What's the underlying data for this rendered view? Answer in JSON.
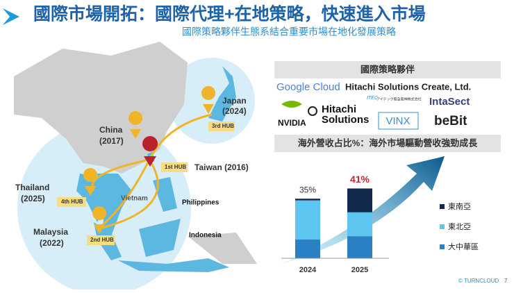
{
  "header": {
    "title": "國際市場開拓：國際代理+在地策略，快速進入市場",
    "subtitle": "國際策略夥伴生態系結合重要市場在地化發展策略"
  },
  "map": {
    "labels": {
      "japan": "Japan",
      "japan_year": "(2024)",
      "china": "China",
      "china_year": "(2017)",
      "taiwan": "Taiwan (2016)",
      "thailand": "Thailand",
      "thailand_year": "(2025)",
      "malaysia": "Malaysia",
      "malaysia_year": "(2022)",
      "vietnam": "Vietnam",
      "philippines": "Philippines",
      "indonesia": "Indonesia"
    },
    "hubs": [
      "1st HUB",
      "2nd HUB",
      "3rd HUB",
      "4th HUB"
    ]
  },
  "partners": {
    "heading": "國際策略夥伴",
    "logos": [
      "Google Cloud",
      "Hitachi Solutions Create, Ltd.",
      "NVIDIA",
      "Hitachi",
      "Solutions",
      "ITEC",
      "アイテック阪急阪神株式会社",
      "IntaSect",
      "VINX",
      "beBit"
    ]
  },
  "revenue": {
    "heading": "海外營收占比%：海外市場驅動營收強勁成長"
  },
  "chart_data": {
    "type": "stacked_bar",
    "categories": [
      "2024",
      "2025"
    ],
    "series": [
      {
        "name": "大中華區",
        "color": "#2b80c3",
        "values": [
          11,
          13
        ]
      },
      {
        "name": "東北亞",
        "color": "#5cc6f0",
        "values": [
          23,
          14
        ]
      },
      {
        "name": "東南亞",
        "color": "#13294b",
        "values": [
          1,
          14
        ]
      }
    ],
    "totals": [
      35,
      41
    ],
    "total_labels": [
      "35%",
      "41%"
    ],
    "ylim": [
      0,
      42
    ]
  },
  "footer": {
    "brand": "© TURNCLOUD",
    "page": "7"
  }
}
